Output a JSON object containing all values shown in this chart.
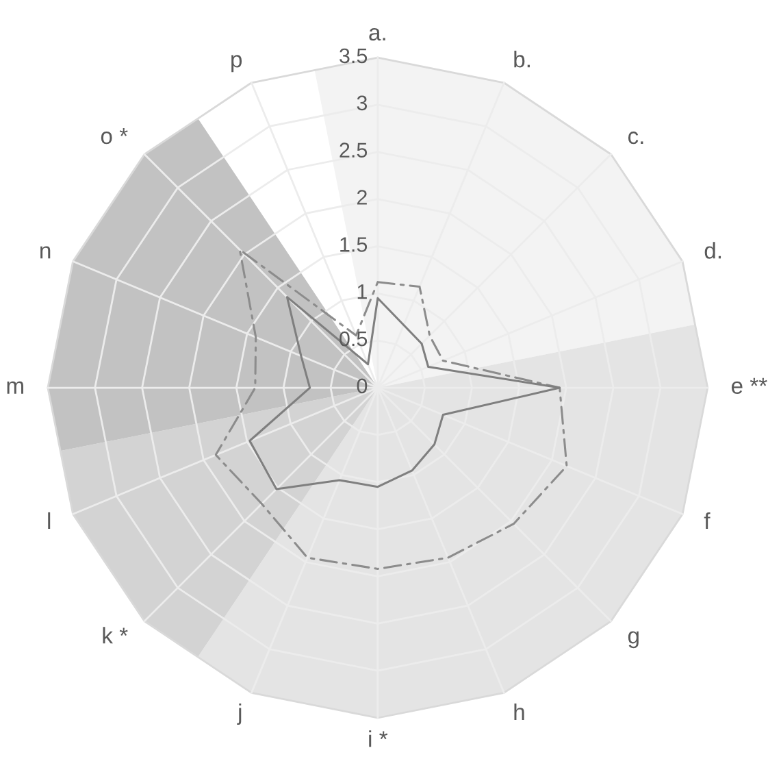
{
  "chart_data": {
    "type": "radar",
    "categories": [
      "a.",
      "b.",
      "c.",
      "d.",
      "e **",
      "f",
      "g",
      "h",
      "i *",
      "j",
      "k *",
      "l",
      "m",
      "n",
      "o *",
      "p"
    ],
    "series": [
      {
        "color": "#8c8c8c",
        "line_style": "dashdot",
        "values": [
          1.12,
          1.16,
          0.78,
          0.75,
          1.93,
          2.17,
          2.04,
          1.95,
          1.92,
          1.95,
          1.74,
          1.86,
          1.3,
          1.4,
          2.07,
          0.6
        ]
      },
      {
        "color": "#7f7f7f",
        "line_style": "solid",
        "values": [
          0.95,
          0.72,
          0.66,
          0.58,
          1.93,
          0.75,
          0.85,
          0.95,
          1.05,
          1.06,
          1.52,
          1.47,
          0.72,
          0.88,
          1.36,
          0.27
        ]
      }
    ],
    "ylim": [
      0,
      3.5
    ],
    "yticks": [
      0,
      0.5,
      1,
      1.5,
      2,
      2.5,
      3,
      3.5
    ],
    "grid": true,
    "marker": "none"
  }
}
